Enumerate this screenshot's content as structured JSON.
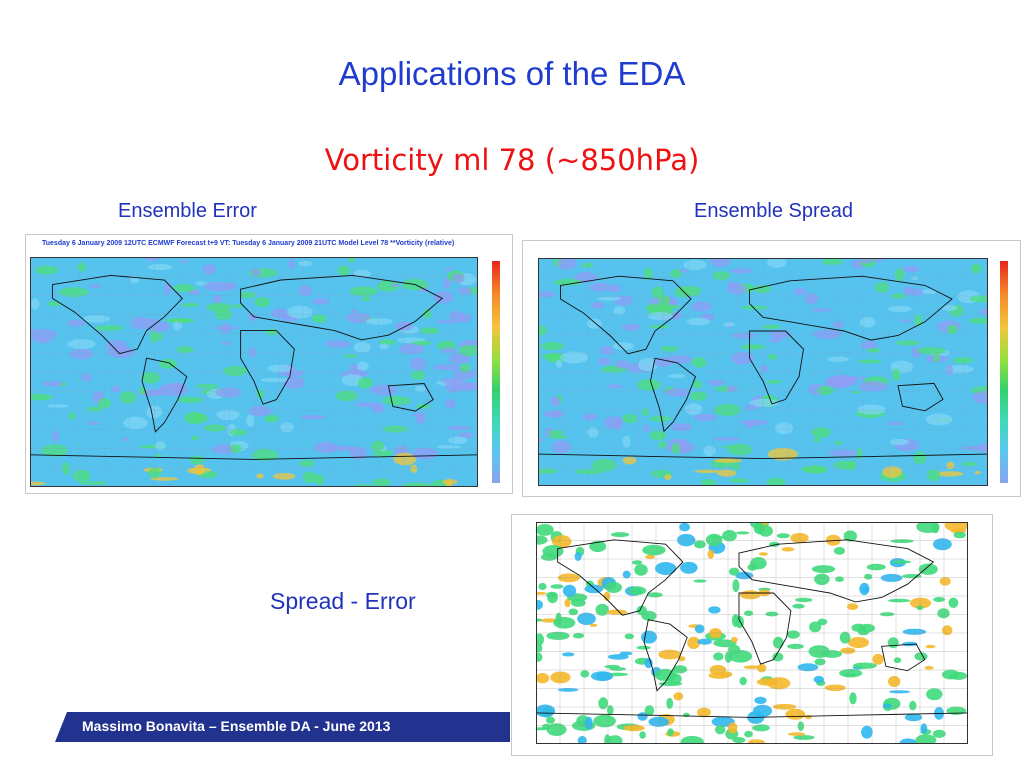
{
  "slide": {
    "title": "Applications of the EDA",
    "subtitle": "Vorticity ml 78 (~850hPa)"
  },
  "panels": {
    "error": {
      "label": "Ensemble Error",
      "header": "Tuesday 6 January 2009 12UTC ECMWF  Forecast t+9 VT: Tuesday 6 January 2009 21UTC Model Level 78 **Vorticity (relative)"
    },
    "spread": {
      "label": "Ensemble Spread"
    },
    "diff": {
      "label": "Spread - Error"
    }
  },
  "footer": {
    "text": "Massimo Bonavita –  Ensemble DA - June 2013"
  },
  "colors": {
    "title": "#1f3ccf",
    "subtitle": "#ee1111",
    "labels": "#2233bb",
    "footer_bg": "#21328f",
    "map_base": "#55c3ee",
    "map_green": "#4ddf7a",
    "map_purple": "#8f9cf5",
    "diff_green": "#3fd97c",
    "diff_orange": "#f5b82a"
  }
}
